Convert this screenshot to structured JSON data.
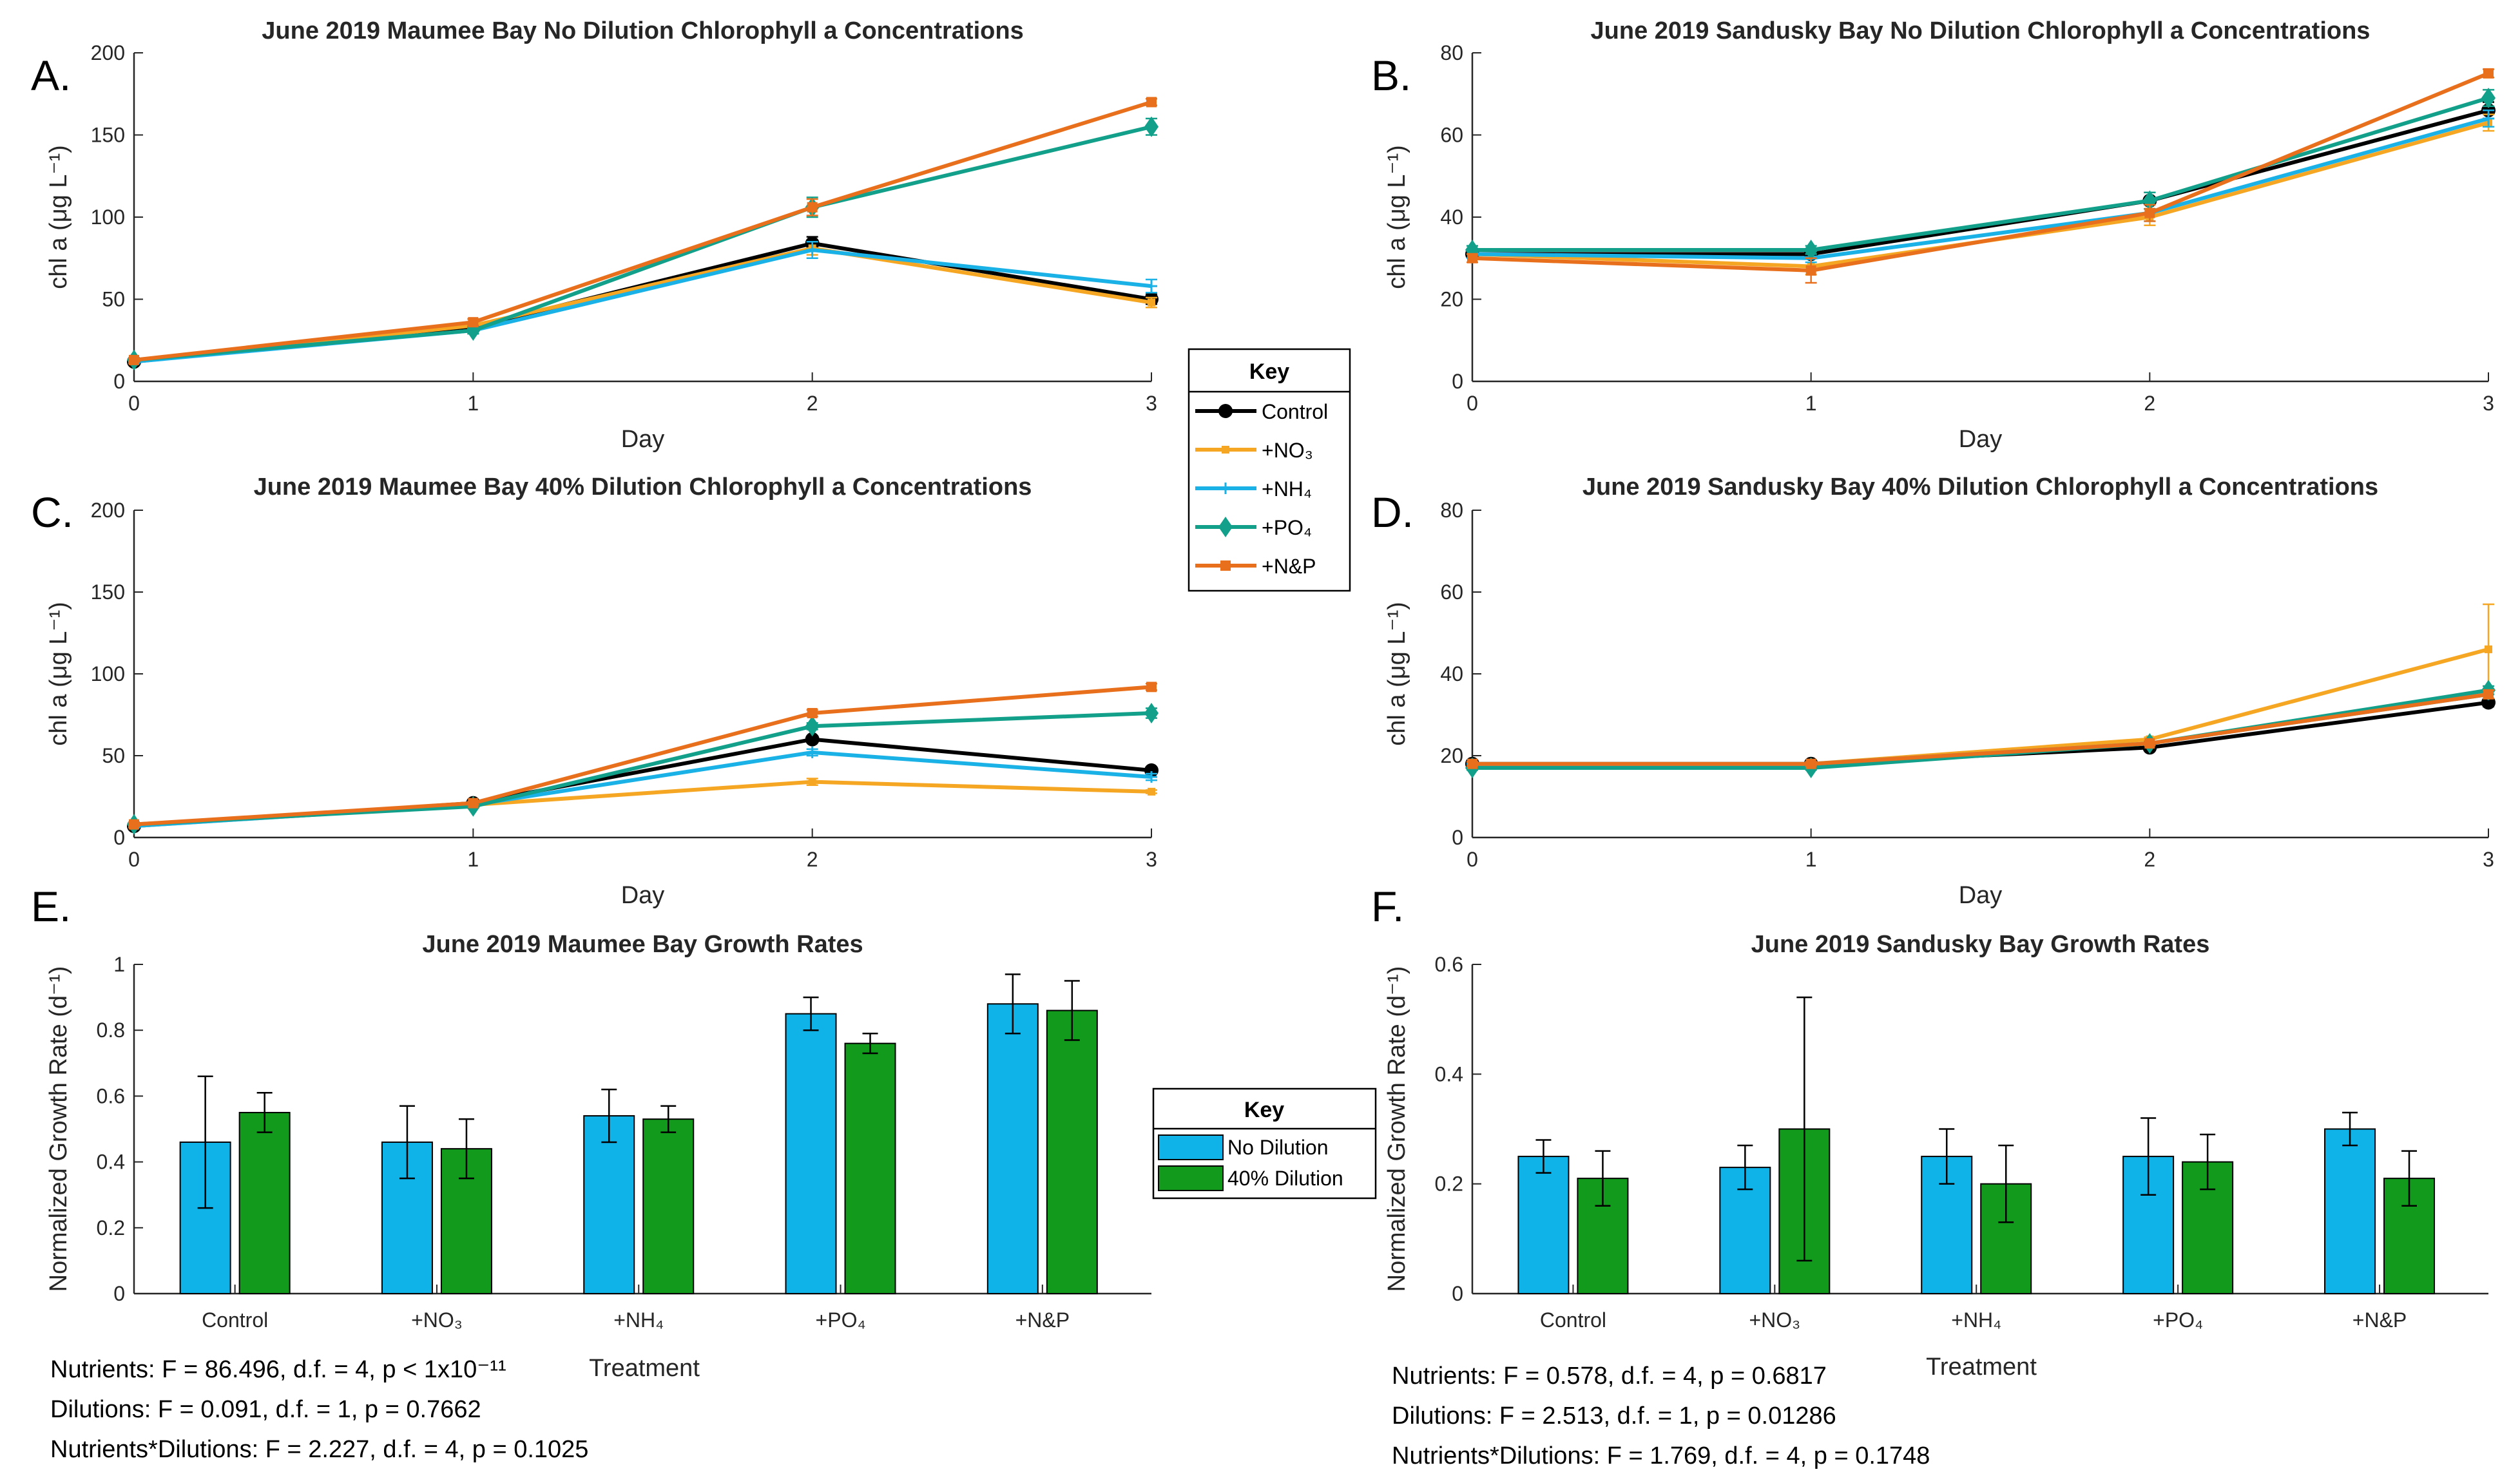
{
  "colors": {
    "Control": "#000000",
    "+NO3": "#f5a623",
    "+NH4": "#1ab2e6",
    "+PO4": "#12a08a",
    "+N&P": "#e8701d",
    "No Dilution": "#10b3e8",
    "40% Dilution": "#119a1c"
  },
  "chart_data": [
    {
      "id": "A",
      "panel_label": "A.",
      "type": "line",
      "title": "June 2019 Maumee Bay No Dilution Chlorophyll a Concentrations",
      "xlabel": "Day",
      "ylabel": "chl a (μg L⁻¹)",
      "x": [
        0,
        1,
        2,
        3
      ],
      "xlim": [
        0,
        3
      ],
      "ylim": [
        0,
        200
      ],
      "yticks": [
        0,
        50,
        100,
        150,
        200
      ],
      "series": [
        {
          "name": "Control",
          "values": [
            12,
            33,
            84,
            50
          ],
          "errors": [
            1,
            2,
            4,
            3
          ]
        },
        {
          "name": "+NO3",
          "values": [
            12,
            34,
            81,
            48
          ],
          "errors": [
            1,
            2,
            4,
            3
          ]
        },
        {
          "name": "+NH4",
          "values": [
            12,
            31,
            80,
            58
          ],
          "errors": [
            1,
            2,
            5,
            4
          ]
        },
        {
          "name": "+PO4",
          "values": [
            13,
            31,
            106,
            155
          ],
          "errors": [
            1,
            2,
            6,
            5
          ]
        },
        {
          "name": "+N&P",
          "values": [
            13,
            36,
            106,
            170
          ],
          "errors": [
            1,
            2,
            5,
            2
          ]
        }
      ]
    },
    {
      "id": "B",
      "panel_label": "B.",
      "type": "line",
      "title": "June 2019 Sandusky Bay No Dilution Chlorophyll a Concentrations",
      "xlabel": "Day",
      "ylabel": "chl a (μg L⁻¹)",
      "x": [
        0,
        1,
        2,
        3
      ],
      "xlim": [
        0,
        3
      ],
      "ylim": [
        0,
        80
      ],
      "yticks": [
        0,
        20,
        40,
        60,
        80
      ],
      "series": [
        {
          "name": "Control",
          "values": [
            31,
            31,
            44,
            66
          ],
          "errors": [
            1,
            1,
            2,
            2
          ]
        },
        {
          "name": "+NO3",
          "values": [
            31,
            28,
            40,
            63
          ],
          "errors": [
            1,
            2,
            2,
            2
          ]
        },
        {
          "name": "+NH4",
          "values": [
            31,
            30,
            41,
            64
          ],
          "errors": [
            1,
            1,
            2,
            2
          ]
        },
        {
          "name": "+PO4",
          "values": [
            32,
            32,
            44,
            69
          ],
          "errors": [
            1,
            1,
            2,
            2
          ]
        },
        {
          "name": "+N&P",
          "values": [
            30,
            27,
            41,
            75
          ],
          "errors": [
            1,
            3,
            2,
            1
          ]
        }
      ]
    },
    {
      "id": "C",
      "panel_label": "C.",
      "type": "line",
      "title": "June 2019 Maumee Bay 40% Dilution Chlorophyll a Concentrations",
      "xlabel": "Day",
      "ylabel": "chl a (μg L⁻¹)",
      "x": [
        0,
        1,
        2,
        3
      ],
      "xlim": [
        0,
        3
      ],
      "ylim": [
        0,
        200
      ],
      "yticks": [
        0,
        50,
        100,
        150,
        200
      ],
      "series": [
        {
          "name": "Control",
          "values": [
            7,
            21,
            60,
            41
          ],
          "errors": [
            1,
            1,
            2,
            2
          ]
        },
        {
          "name": "+NO3",
          "values": [
            7,
            20,
            34,
            28
          ],
          "errors": [
            1,
            1,
            2,
            1
          ]
        },
        {
          "name": "+NH4",
          "values": [
            7,
            20,
            52,
            37
          ],
          "errors": [
            1,
            1,
            2,
            2
          ]
        },
        {
          "name": "+PO4",
          "values": [
            8,
            19,
            68,
            76
          ],
          "errors": [
            1,
            1,
            2,
            3
          ]
        },
        {
          "name": "+N&P",
          "values": [
            8,
            21,
            76,
            92
          ],
          "errors": [
            1,
            1,
            2,
            2
          ]
        }
      ]
    },
    {
      "id": "D",
      "panel_label": "D.",
      "type": "line",
      "title": "June 2019 Sandusky Bay 40% Dilution Chlorophyll a Concentrations",
      "xlabel": "Day",
      "ylabel": "chl a (μg L⁻¹)",
      "x": [
        0,
        1,
        2,
        3
      ],
      "xlim": [
        0,
        3
      ],
      "ylim": [
        0,
        80
      ],
      "yticks": [
        0,
        20,
        40,
        60,
        80
      ],
      "series": [
        {
          "name": "Control",
          "values": [
            18,
            18,
            22,
            33
          ],
          "errors": [
            0.5,
            0.5,
            0.5,
            1
          ]
        },
        {
          "name": "+NO3",
          "values": [
            18,
            18,
            24,
            46
          ],
          "errors": [
            0.5,
            0.5,
            0.5,
            11
          ]
        },
        {
          "name": "+NH4",
          "values": [
            18,
            18,
            23,
            35
          ],
          "errors": [
            0.5,
            0.5,
            0.5,
            1
          ]
        },
        {
          "name": "+PO4",
          "values": [
            17,
            17,
            23,
            36
          ],
          "errors": [
            0.5,
            0.5,
            0.5,
            1
          ]
        },
        {
          "name": "+N&P",
          "values": [
            18,
            18,
            23,
            35
          ],
          "errors": [
            0.5,
            0.5,
            0.5,
            1
          ]
        }
      ]
    },
    {
      "id": "E",
      "panel_label": "E.",
      "type": "bar",
      "title": "June 2019 Maumee Bay Growth Rates",
      "xlabel": "Treatment",
      "ylabel": "Normalized Growth Rate (d⁻¹)",
      "categories": [
        "Control",
        "+NO₃",
        "+NH₄",
        "+PO₄",
        "+N&P"
      ],
      "ylim": [
        0,
        1
      ],
      "yticks": [
        0,
        0.2,
        0.4,
        0.6,
        0.8,
        1
      ],
      "series": [
        {
          "name": "No Dilution",
          "values": [
            0.46,
            0.46,
            0.54,
            0.85,
            0.88
          ],
          "errors": [
            0.2,
            0.11,
            0.08,
            0.05,
            0.09
          ]
        },
        {
          "name": "40% Dilution",
          "values": [
            0.55,
            0.44,
            0.53,
            0.76,
            0.86
          ],
          "errors": [
            0.06,
            0.09,
            0.04,
            0.03,
            0.09
          ]
        }
      ]
    },
    {
      "id": "F",
      "panel_label": "F.",
      "type": "bar",
      "title": "June 2019 Sandusky Bay Growth Rates",
      "xlabel": "Treatment",
      "ylabel": "Normalized Growth Rate (d⁻¹)",
      "categories": [
        "Control",
        "+NO₃",
        "+NH₄",
        "+PO₄",
        "+N&P"
      ],
      "ylim": [
        0,
        0.6
      ],
      "yticks": [
        0,
        0.2,
        0.4,
        0.6
      ],
      "series": [
        {
          "name": "No Dilution",
          "values": [
            0.25,
            0.23,
            0.25,
            0.25,
            0.3
          ],
          "errors": [
            0.03,
            0.04,
            0.05,
            0.07,
            0.03
          ]
        },
        {
          "name": "40% Dilution",
          "values": [
            0.21,
            0.3,
            0.2,
            0.24,
            0.21
          ],
          "errors": [
            0.05,
            0.24,
            0.07,
            0.05,
            0.05
          ]
        }
      ]
    }
  ],
  "line_key": {
    "title": "Key",
    "items": [
      "Control",
      "+NO₃",
      "+NH₄",
      "+PO₄",
      "+N&P"
    ]
  },
  "bar_key": {
    "title": "Key",
    "items": [
      "No Dilution",
      "40% Dilution"
    ]
  },
  "stats_left": [
    "Nutrients: F = 86.496, d.f. = 4, p < 1x10⁻¹¹",
    "Dilutions: F = 0.091, d.f. = 1, p = 0.7662",
    "Nutrients*Dilutions: F = 2.227, d.f. = 4, p = 0.1025"
  ],
  "stats_right": [
    "Nutrients: F = 0.578, d.f. = 4, p = 0.6817",
    "Dilutions: F = 2.513, d.f. = 1, p = 0.01286",
    "Nutrients*Dilutions: F = 1.769, d.f. = 4, p = 0.1748"
  ]
}
